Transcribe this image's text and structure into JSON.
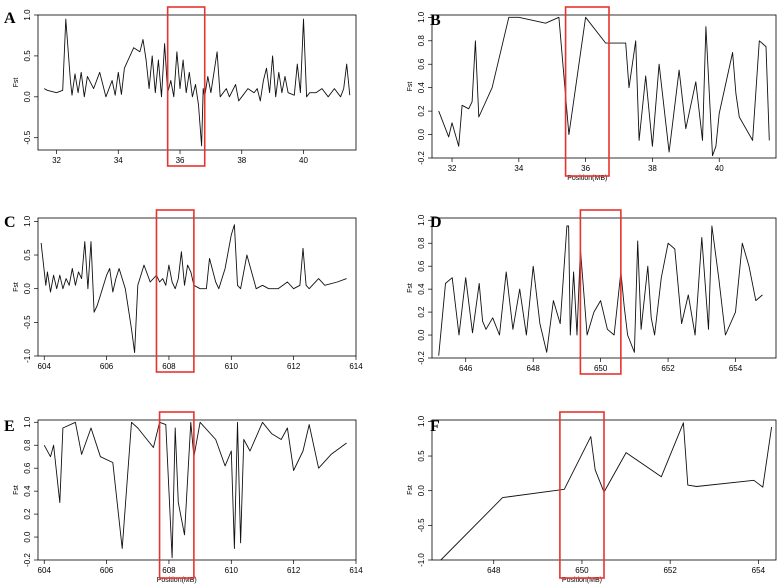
{
  "figure": {
    "type": "line",
    "panel_count": 6
  },
  "chart_data": [
    {
      "panel": "A",
      "type": "line",
      "xlabel": "",
      "ylabel": "Fst",
      "xlim": [
        31.4,
        41.7
      ],
      "ylim": [
        -0.65,
        1.0
      ],
      "xticks": [
        32,
        34,
        36,
        38,
        40
      ],
      "yticks": [
        -0.5,
        0.0,
        0.5,
        1.0
      ],
      "highlight": {
        "x": [
          35.6,
          36.8
        ],
        "color": "#e8332e"
      },
      "series": [
        {
          "x": [
            31.6,
            31.7,
            32.0,
            32.2,
            32.3,
            32.45,
            32.5,
            32.6,
            32.7,
            32.8,
            32.9,
            33.0,
            33.2,
            33.4,
            33.5,
            33.6,
            33.8,
            33.9,
            34.0,
            34.1,
            34.2,
            34.5,
            34.7,
            34.8,
            34.9,
            35.0,
            35.1,
            35.2,
            35.3,
            35.4,
            35.5,
            35.6,
            35.7,
            35.8,
            35.9,
            36.0,
            36.1,
            36.2,
            36.3,
            36.4,
            36.5,
            36.6,
            36.7,
            36.75,
            36.8,
            36.9,
            37.0,
            37.2,
            37.3,
            37.5,
            37.6,
            37.8,
            37.9,
            38.0,
            38.2,
            38.4,
            38.5,
            38.6,
            38.7,
            38.8,
            38.9,
            39.0,
            39.1,
            39.2,
            39.3,
            39.4,
            39.5,
            39.7,
            39.8,
            39.9,
            40.0,
            40.1,
            40.2,
            40.4,
            40.6,
            40.8,
            41.0,
            41.2,
            41.3,
            41.4,
            41.5
          ],
          "values": [
            0.1,
            0.08,
            0.05,
            0.08,
            0.95,
            0.2,
            0.02,
            0.28,
            0.05,
            0.3,
            0.0,
            0.25,
            0.1,
            0.3,
            0.15,
            0.0,
            0.2,
            0.02,
            0.3,
            0.03,
            0.35,
            0.6,
            0.55,
            0.7,
            0.45,
            0.1,
            0.5,
            0.05,
            0.45,
            0.0,
            0.65,
            0.05,
            0.2,
            0.0,
            0.55,
            0.1,
            0.45,
            0.05,
            0.3,
            0.0,
            0.15,
            -0.1,
            -0.6,
            0.1,
            0.0,
            0.25,
            0.05,
            0.55,
            0.0,
            0.1,
            0.0,
            0.15,
            -0.05,
            0.0,
            0.1,
            0.05,
            0.1,
            -0.05,
            0.2,
            0.35,
            0.05,
            0.5,
            0.0,
            0.3,
            0.05,
            0.25,
            0.05,
            0.02,
            0.4,
            0.05,
            0.95,
            0.0,
            0.05,
            0.05,
            0.1,
            0.0,
            0.1,
            0.0,
            0.1,
            0.4,
            0.02
          ]
        }
      ]
    },
    {
      "panel": "B",
      "type": "line",
      "xlabel": "Position(MB)",
      "ylabel": "Fst",
      "xlim": [
        31.4,
        41.7
      ],
      "ylim": [
        -0.2,
        1.02
      ],
      "xticks": [
        32,
        34,
        36,
        38,
        40
      ],
      "yticks": [
        -0.2,
        0.0,
        0.2,
        0.4,
        0.6,
        0.8,
        1.0
      ],
      "highlight": {
        "x": [
          35.4,
          36.7
        ],
        "color": "#e8332e"
      },
      "series": [
        {
          "x": [
            31.6,
            31.9,
            32.0,
            32.2,
            32.3,
            32.5,
            32.6,
            32.7,
            32.8,
            33.2,
            33.7,
            34.0,
            34.8,
            35.2,
            35.5,
            36.0,
            36.6,
            37.2,
            37.3,
            37.5,
            37.6,
            37.8,
            38.0,
            38.2,
            38.5,
            38.8,
            39.0,
            39.3,
            39.5,
            39.6,
            39.8,
            39.9,
            40.0,
            40.4,
            40.5,
            40.6,
            41.0,
            41.2,
            41.4,
            41.5
          ],
          "values": [
            0.2,
            -0.02,
            0.1,
            -0.1,
            0.25,
            0.22,
            0.28,
            0.8,
            0.15,
            0.4,
            1.0,
            1.0,
            0.95,
            1.0,
            0.0,
            1.0,
            0.78,
            0.78,
            0.4,
            0.8,
            -0.05,
            0.5,
            -0.1,
            0.6,
            -0.15,
            0.55,
            0.05,
            0.45,
            -0.05,
            0.92,
            -0.18,
            -0.1,
            0.18,
            0.7,
            0.35,
            0.15,
            -0.05,
            0.8,
            0.75,
            -0.05
          ]
        }
      ]
    },
    {
      "panel": "C",
      "type": "line",
      "xlabel": "",
      "ylabel": "Fst",
      "xlim": [
        603.8,
        614.0
      ],
      "ylim": [
        -1.0,
        1.05
      ],
      "xticks": [
        604,
        606,
        608,
        610,
        612,
        614
      ],
      "yticks": [
        -1.0,
        -0.5,
        0.0,
        0.5,
        1.0
      ],
      "highlight": {
        "x": [
          607.6,
          608.8
        ],
        "color": "#e8332e"
      },
      "series": [
        {
          "x": [
            603.9,
            604.05,
            604.1,
            604.2,
            604.3,
            604.4,
            604.5,
            604.6,
            604.7,
            604.8,
            604.9,
            605.0,
            605.1,
            605.2,
            605.3,
            605.4,
            605.5,
            605.6,
            605.7,
            605.8,
            605.9,
            606.0,
            606.1,
            606.2,
            606.3,
            606.4,
            606.6,
            606.8,
            606.9,
            607.0,
            607.2,
            607.4,
            607.6,
            607.7,
            607.8,
            607.9,
            608.0,
            608.1,
            608.2,
            608.3,
            608.4,
            608.5,
            608.6,
            608.7,
            608.8,
            609.0,
            609.2,
            609.3,
            609.5,
            609.6,
            609.8,
            610.0,
            610.1,
            610.2,
            610.3,
            610.5,
            610.8,
            611.0,
            611.2,
            611.5,
            611.8,
            612.0,
            612.2,
            612.3,
            612.4,
            612.5,
            612.8,
            613.0,
            613.4,
            613.7
          ],
          "values": [
            0.68,
            0.05,
            0.25,
            -0.05,
            0.2,
            0.0,
            0.2,
            0.0,
            0.15,
            0.05,
            0.3,
            0.05,
            0.25,
            0.15,
            0.7,
            0.0,
            0.7,
            -0.35,
            -0.25,
            -0.1,
            0.05,
            0.2,
            0.3,
            -0.05,
            0.15,
            0.3,
            0.0,
            -0.6,
            -0.95,
            0.05,
            0.35,
            0.1,
            0.2,
            0.1,
            0.15,
            0.05,
            0.35,
            0.1,
            0.0,
            0.15,
            0.55,
            0.05,
            0.35,
            0.25,
            0.05,
            0.0,
            0.0,
            0.45,
            0.1,
            0.0,
            0.3,
            0.8,
            0.95,
            0.05,
            0.0,
            0.5,
            0.0,
            0.05,
            0.0,
            0.0,
            0.1,
            0.0,
            0.05,
            0.6,
            0.05,
            0.0,
            0.15,
            0.05,
            0.1,
            0.15
          ]
        }
      ]
    },
    {
      "panel": "D",
      "type": "line",
      "xlabel": "",
      "ylabel": "Fst",
      "xlim": [
        645.0,
        655.2
      ],
      "ylim": [
        -0.2,
        1.02
      ],
      "xticks": [
        646,
        648,
        650,
        652,
        654
      ],
      "yticks": [
        -0.2,
        0.0,
        0.2,
        0.4,
        0.6,
        0.8,
        1.0
      ],
      "highlight": {
        "x": [
          649.4,
          650.6
        ],
        "color": "#e8332e"
      },
      "series": [
        {
          "x": [
            645.2,
            645.4,
            645.6,
            645.8,
            646.0,
            646.2,
            646.4,
            646.5,
            646.6,
            646.8,
            647.0,
            647.2,
            647.4,
            647.6,
            647.8,
            648.0,
            648.2,
            648.4,
            648.6,
            648.8,
            649.0,
            649.05,
            649.1,
            649.2,
            649.3,
            649.4,
            649.6,
            649.8,
            650.0,
            650.2,
            650.4,
            650.6,
            650.7,
            650.8,
            651.0,
            651.1,
            651.2,
            651.4,
            651.5,
            651.6,
            651.8,
            652.0,
            652.2,
            652.4,
            652.6,
            652.8,
            653.0,
            653.2,
            653.3,
            653.5,
            653.7,
            654.0,
            654.2,
            654.4,
            654.6,
            654.8
          ],
          "values": [
            -0.18,
            0.45,
            0.5,
            0.0,
            0.5,
            0.02,
            0.45,
            0.12,
            0.05,
            0.15,
            0.0,
            0.55,
            0.05,
            0.4,
            0.0,
            0.6,
            0.1,
            -0.15,
            0.3,
            0.1,
            0.95,
            0.95,
            0.0,
            0.55,
            0.0,
            0.75,
            0.0,
            0.2,
            0.3,
            0.05,
            0.0,
            0.55,
            0.25,
            0.0,
            -0.15,
            0.82,
            0.05,
            0.6,
            0.15,
            0.0,
            0.5,
            0.8,
            0.75,
            0.1,
            0.35,
            0.0,
            0.85,
            0.05,
            0.95,
            0.5,
            0.0,
            0.2,
            0.8,
            0.6,
            0.3,
            0.35
          ]
        }
      ]
    },
    {
      "panel": "E",
      "type": "line",
      "xlabel": "Position(MB)",
      "ylabel": "Fst",
      "xlim": [
        603.8,
        614.0
      ],
      "ylim": [
        -0.2,
        1.02
      ],
      "xticks": [
        604,
        606,
        608,
        610,
        612,
        614
      ],
      "yticks": [
        -0.2,
        0.0,
        0.2,
        0.4,
        0.6,
        0.8,
        1.0
      ],
      "highlight": {
        "x": [
          607.7,
          608.8
        ],
        "color": "#e8332e"
      },
      "series": [
        {
          "x": [
            604.0,
            604.2,
            604.3,
            604.5,
            604.6,
            605.0,
            605.2,
            605.5,
            605.8,
            606.2,
            606.5,
            606.8,
            607.0,
            607.5,
            607.7,
            607.9,
            608.1,
            608.2,
            608.3,
            608.5,
            608.7,
            608.8,
            609.0,
            609.5,
            609.8,
            610.0,
            610.1,
            610.2,
            610.3,
            610.4,
            610.6,
            611.0,
            611.3,
            611.6,
            611.8,
            612.0,
            612.3,
            612.5,
            612.8,
            613.2,
            613.7
          ],
          "values": [
            0.8,
            0.7,
            0.8,
            0.3,
            0.95,
            1.0,
            0.72,
            0.95,
            0.7,
            0.65,
            -0.1,
            1.0,
            0.95,
            0.78,
            1.0,
            0.98,
            -0.18,
            0.95,
            0.3,
            0.02,
            1.0,
            0.7,
            1.0,
            0.85,
            0.62,
            0.75,
            -0.1,
            1.0,
            -0.05,
            0.85,
            0.75,
            1.0,
            0.9,
            0.85,
            0.95,
            0.58,
            0.75,
            0.98,
            0.6,
            0.72,
            0.82
          ]
        }
      ]
    },
    {
      "panel": "F",
      "type": "line",
      "xlabel": "Position(MB)",
      "ylabel": "Fst",
      "xlim": [
        646.6,
        654.4
      ],
      "ylim": [
        -1.0,
        1.02
      ],
      "xticks": [
        648,
        650,
        652,
        654
      ],
      "yticks": [
        -1.0,
        -0.5,
        0.0,
        0.5,
        1.0
      ],
      "highlight": {
        "x": [
          649.5,
          650.5
        ],
        "color": "#e8332e"
      },
      "series": [
        {
          "x": [
            646.8,
            648.2,
            649.6,
            650.2,
            650.3,
            650.5,
            651.0,
            651.8,
            652.3,
            652.4,
            652.6,
            653.9,
            654.1,
            654.3
          ],
          "values": [
            -1.0,
            -0.1,
            0.02,
            0.78,
            0.3,
            -0.02,
            0.55,
            0.2,
            0.98,
            0.08,
            0.06,
            0.15,
            0.05,
            0.92
          ]
        }
      ]
    }
  ]
}
